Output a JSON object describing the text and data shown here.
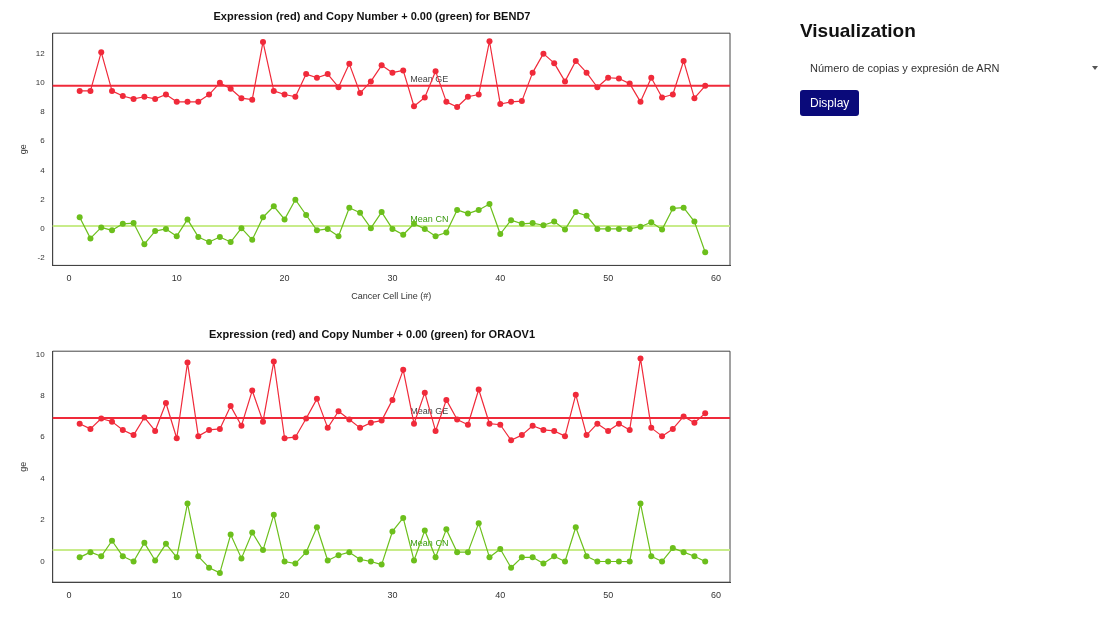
{
  "chart_data": [
    {
      "type": "line",
      "title": "Expression (red) and Copy Number + 0.00 (green) for BEND7",
      "xlabel": "Cancer Cell Line (#)",
      "ylabel": "ge",
      "x": [
        1,
        2,
        3,
        4,
        5,
        6,
        7,
        8,
        9,
        10,
        11,
        12,
        13,
        14,
        15,
        16,
        17,
        18,
        19,
        20,
        21,
        22,
        23,
        24,
        25,
        26,
        27,
        28,
        29,
        30,
        31,
        32,
        33,
        34,
        35,
        36,
        37,
        38,
        39,
        40,
        41,
        42,
        43,
        44,
        45,
        46,
        47,
        48,
        49,
        50,
        51,
        52,
        53,
        54,
        55,
        56,
        57,
        58,
        59
      ],
      "xlim": [
        -1.5,
        61.3
      ],
      "xticks": [
        0,
        10,
        20,
        30,
        40,
        50,
        60
      ],
      "ylim": [
        -2.5,
        13.4
      ],
      "yticks": [
        -2,
        0,
        2,
        4,
        6,
        8,
        10,
        12
      ],
      "grid": false,
      "legend": false,
      "marker": "circle",
      "line_style": "solid",
      "series": [
        {
          "color": "#f02a3a",
          "values": [
            9.45,
            9.45,
            12.1,
            9.45,
            9.1,
            8.9,
            9.05,
            8.9,
            9.2,
            8.7,
            8.7,
            8.7,
            9.2,
            10.0,
            9.6,
            8.95,
            8.85,
            12.8,
            9.45,
            9.2,
            9.05,
            10.6,
            10.35,
            10.6,
            9.7,
            11.3,
            9.3,
            10.1,
            11.2,
            10.7,
            10.85,
            8.4,
            9.0,
            10.8,
            8.7,
            8.35,
            9.05,
            9.2,
            12.85,
            8.55,
            8.7,
            8.75,
            10.7,
            12.0,
            11.35,
            10.1,
            11.5,
            10.7,
            9.7,
            10.35,
            10.3,
            9.95,
            8.7,
            10.35,
            9.0,
            9.2,
            11.5,
            8.95,
            9.8
          ]
        },
        {
          "color": "#6cbf1c",
          "values": [
            0.8,
            -0.65,
            0.1,
            -0.1,
            0.35,
            0.4,
            -1.05,
            -0.15,
            0,
            -0.5,
            0.65,
            -0.55,
            -0.9,
            -0.55,
            -0.9,
            0.05,
            -0.75,
            0.8,
            1.55,
            0.65,
            2.0,
            0.95,
            -0.1,
            0,
            -0.5,
            1.45,
            1.1,
            0.05,
            1.15,
            0,
            -0.4,
            0.35,
            0,
            -0.5,
            -0.25,
            1.3,
            1.05,
            1.3,
            1.7,
            -0.35,
            0.6,
            0.35,
            0.4,
            0.25,
            0.5,
            -0.05,
            1.15,
            0.9,
            0,
            0,
            0,
            0,
            0.15,
            0.45,
            -0.05,
            1.4,
            1.45,
            0.5,
            -1.6
          ]
        }
      ],
      "ref_lines": [
        {
          "axis": "y",
          "value": 9.8,
          "label": "Mean GE",
          "color": "#f02a3a"
        },
        {
          "axis": "y",
          "value": 0.2,
          "label": "Mean CN",
          "color": "#c8ec8a"
        }
      ]
    },
    {
      "type": "line",
      "title": "Expression (red) and Copy Number + 0.00 (green) for ORAOV1",
      "ylabel": "ge",
      "x": [
        1,
        2,
        3,
        4,
        5,
        6,
        7,
        8,
        9,
        10,
        11,
        12,
        13,
        14,
        15,
        16,
        17,
        18,
        19,
        20,
        21,
        22,
        23,
        24,
        25,
        26,
        27,
        28,
        29,
        30,
        31,
        32,
        33,
        34,
        35,
        36,
        37,
        38,
        39,
        40,
        41,
        42,
        43,
        44,
        45,
        46,
        47,
        48,
        49,
        50,
        51,
        52,
        53,
        54,
        55,
        56,
        57,
        58,
        59
      ],
      "xlim": [
        -1.5,
        61.3
      ],
      "xticks": [
        0,
        10,
        20,
        30,
        40,
        50,
        60
      ],
      "ylim": [
        -1,
        10.15
      ],
      "yticks": [
        0,
        2,
        4,
        6,
        8,
        10
      ],
      "grid": false,
      "legend": false,
      "marker": "circle",
      "line_style": "solid",
      "series": [
        {
          "color": "#f02a3a",
          "values": [
            6.65,
            6.4,
            6.9,
            6.75,
            6.35,
            6.1,
            6.95,
            6.3,
            7.65,
            5.95,
            9.6,
            6.05,
            6.35,
            6.4,
            7.5,
            6.55,
            8.25,
            6.75,
            9.65,
            5.95,
            6.0,
            6.9,
            7.85,
            6.45,
            7.25,
            6.85,
            6.45,
            6.7,
            6.8,
            7.8,
            9.25,
            6.65,
            8.15,
            6.3,
            7.8,
            6.85,
            6.6,
            8.3,
            6.65,
            6.6,
            5.85,
            6.1,
            6.55,
            6.35,
            6.3,
            6.05,
            8.05,
            6.1,
            6.65,
            6.3,
            6.65,
            6.35,
            9.8,
            6.45,
            6.05,
            6.4,
            7.0,
            6.7,
            7.15
          ]
        },
        {
          "color": "#6cbf1c",
          "values": [
            0.2,
            0.45,
            0.25,
            1.0,
            0.25,
            0,
            0.9,
            0.05,
            0.85,
            0.2,
            2.8,
            0.25,
            -0.3,
            -0.55,
            1.3,
            0.15,
            1.4,
            0.55,
            2.25,
            0,
            -0.1,
            0.45,
            1.65,
            0.05,
            0.3,
            0.45,
            0.1,
            0,
            -0.15,
            1.45,
            2.1,
            0.05,
            1.5,
            0.2,
            1.55,
            0.45,
            0.45,
            1.85,
            0.2,
            0.6,
            -0.3,
            0.2,
            0.2,
            -0.1,
            0.25,
            0,
            1.65,
            0.25,
            0,
            0,
            0,
            0,
            2.8,
            0.25,
            0,
            0.65,
            0.45,
            0.25,
            0
          ]
        }
      ],
      "ref_lines": [
        {
          "axis": "y",
          "value": 6.93,
          "label": "Mean GE",
          "color": "#f02a3a"
        },
        {
          "axis": "y",
          "value": 0.55,
          "label": "Mean CN",
          "color": "#c8ec8a"
        }
      ]
    },
    {
      "type": "other",
      "title": "Visualization",
      "annotations": [
        "Número de copias y expresión de ARN",
        "Display"
      ]
    }
  ]
}
